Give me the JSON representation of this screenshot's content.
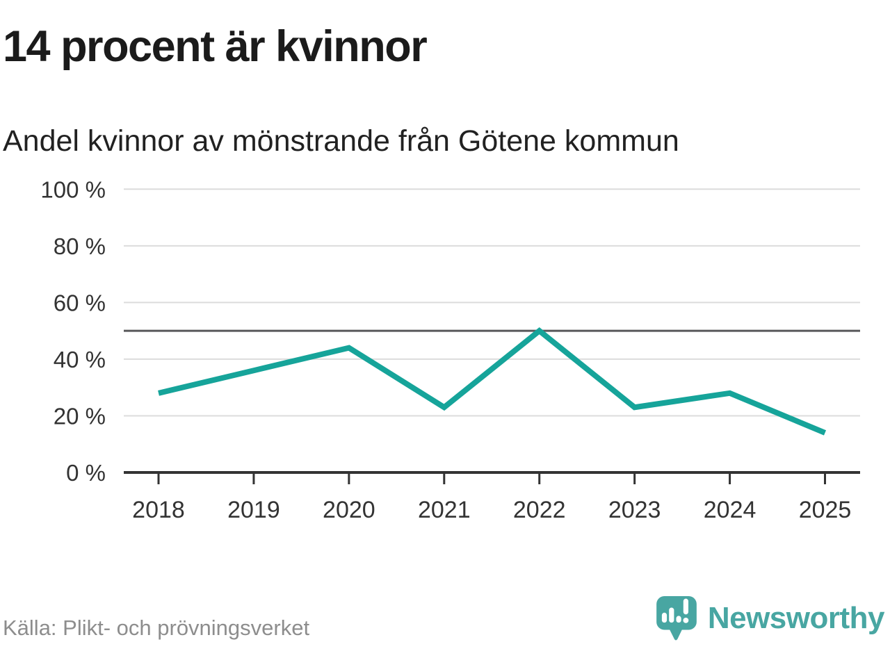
{
  "title": "14 procent är kvinnor",
  "subtitle": "Andel kvinnor av mönstrande från Götene kommun",
  "source": "Källa: Plikt- och prövningsverket",
  "brand": {
    "name": "Newsworthy"
  },
  "colors": {
    "line": "#16a49a",
    "grid": "#dcdcdc",
    "reference_line": "#58585a",
    "axis": "#333333",
    "tick_text": "#333333",
    "title_text": "#1b1b1b",
    "source_text": "#8d8d8d",
    "brand_teal": "#48a6a2"
  },
  "chart_data": {
    "type": "line",
    "title": "14 procent är kvinnor",
    "subtitle": "Andel kvinnor av mönstrande från Götene kommun",
    "categories": [
      "2018",
      "2019",
      "2020",
      "2021",
      "2022",
      "2023",
      "2024",
      "2025"
    ],
    "series": [
      {
        "name": "Andel kvinnor av mönstrande",
        "values": [
          28,
          36,
          44,
          23,
          50,
          23,
          28,
          14
        ]
      }
    ],
    "unit": "%",
    "xlabel": "",
    "ylabel": "",
    "ylim": [
      0,
      100
    ],
    "y_ticks": [
      {
        "value": 0,
        "label": "0 %"
      },
      {
        "value": 20,
        "label": "20 %"
      },
      {
        "value": 40,
        "label": "40 %"
      },
      {
        "value": 60,
        "label": "60 %"
      },
      {
        "value": 80,
        "label": "80 %"
      },
      {
        "value": 100,
        "label": "100 %"
      }
    ],
    "reference_line": 50,
    "grid": "horizontal",
    "legend": "none"
  }
}
